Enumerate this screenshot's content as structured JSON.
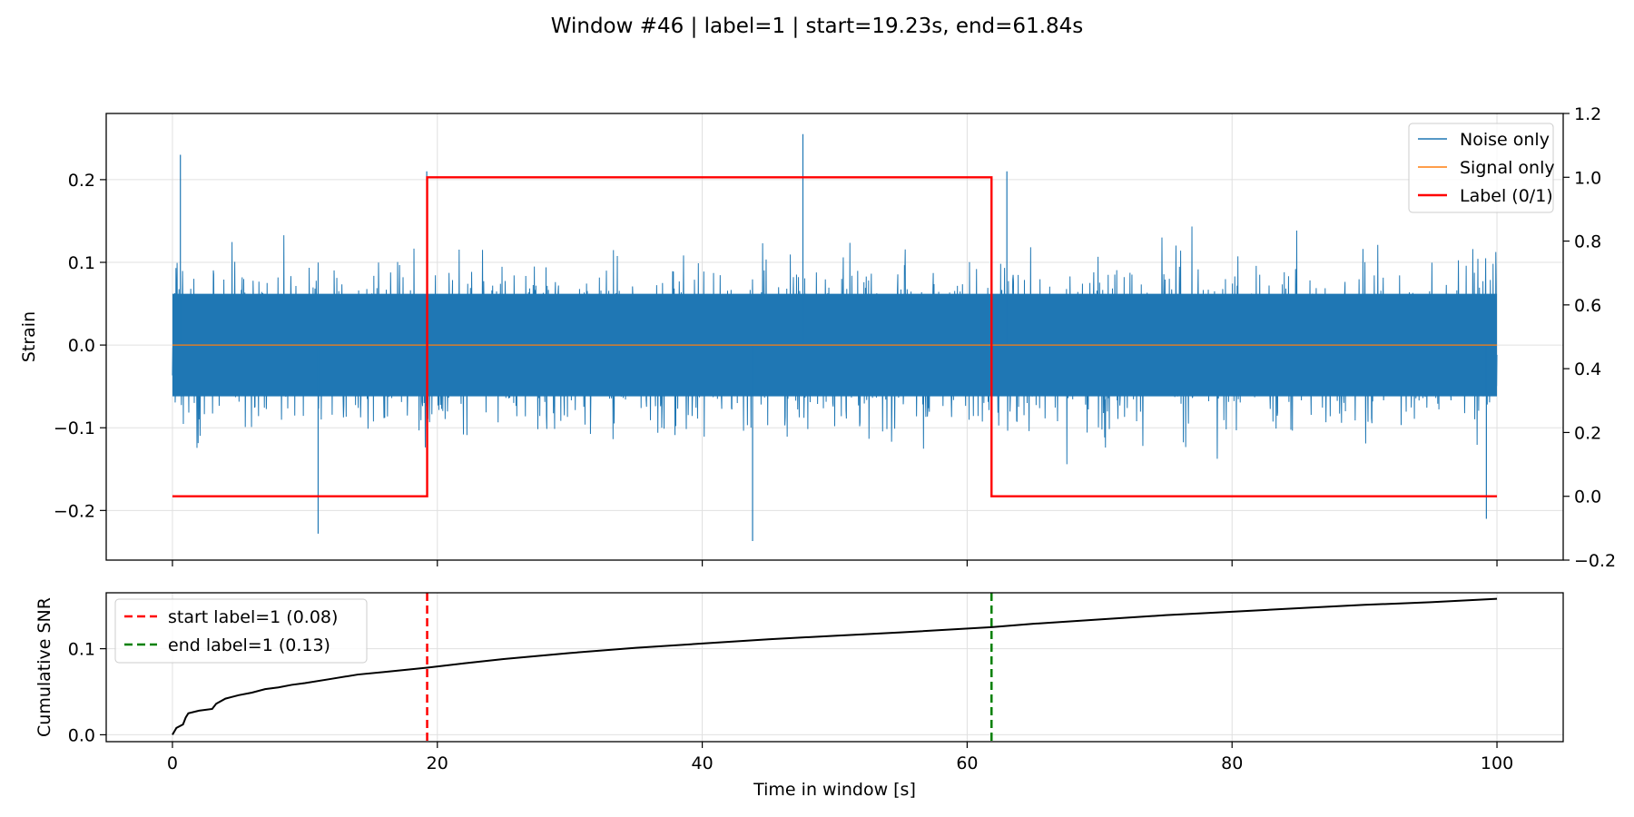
{
  "figure": {
    "title": "Window #46 | label=1 | start=19.23s, end=61.84s"
  },
  "colors": {
    "noise": "#1f77b4",
    "signal": "#ff7f0e",
    "label": "#ff0000",
    "snr": "#000000",
    "start_line": "#ff0000",
    "end_line": "#008000",
    "grid": "#e0e0e0"
  },
  "chart_data": [
    {
      "type": "line",
      "panel": "top",
      "xlabel": "",
      "ylabel": "Strain",
      "y2label": "",
      "xlim": [
        -5,
        105
      ],
      "ylim": [
        -0.26,
        0.28
      ],
      "y2lim": [
        -0.2,
        1.2
      ],
      "x_ticks": [
        0,
        20,
        40,
        60,
        80,
        100
      ],
      "y_ticks": [
        -0.2,
        -0.1,
        0.0,
        0.1,
        0.2
      ],
      "y_tick_labels": [
        "−0.2",
        "−0.1",
        "0.0",
        "0.1",
        "0.2"
      ],
      "y2_ticks": [
        -0.2,
        0.0,
        0.2,
        0.4,
        0.6,
        0.8,
        1.0,
        1.2
      ],
      "y2_tick_labels": [
        "−0.2",
        "0.0",
        "0.2",
        "0.4",
        "0.6",
        "0.8",
        "1.0",
        "1.2"
      ],
      "grid": true,
      "legend_position": "top-right",
      "series": [
        {
          "name": "Noise only",
          "style": "noise band",
          "x_range": [
            0,
            100
          ],
          "typical_amplitude": 0.1,
          "notable_peaks": [
            {
              "x": 0.6,
              "y": 0.23
            },
            {
              "x": 47.6,
              "y": 0.255
            },
            {
              "x": 43.8,
              "y": -0.237
            },
            {
              "x": 11.0,
              "y": -0.228
            },
            {
              "x": 19.2,
              "y": 0.21
            },
            {
              "x": 63.0,
              "y": 0.21
            },
            {
              "x": 99.2,
              "y": -0.21
            }
          ]
        },
        {
          "name": "Signal only",
          "x": [
            0,
            100
          ],
          "y": [
            0,
            0
          ]
        },
        {
          "name": "Label (0/1)",
          "axis": "right",
          "x": [
            0,
            19.23,
            19.23,
            61.84,
            61.84,
            100
          ],
          "y": [
            0,
            0,
            1,
            1,
            0,
            0
          ]
        }
      ]
    },
    {
      "type": "line",
      "panel": "bottom",
      "xlabel": "Time in window [s]",
      "ylabel": "Cumulative SNR",
      "xlim": [
        -5,
        105
      ],
      "ylim": [
        -0.008,
        0.165
      ],
      "x_ticks": [
        0,
        20,
        40,
        60,
        80,
        100
      ],
      "x_tick_labels": [
        "0",
        "20",
        "40",
        "60",
        "80",
        "100"
      ],
      "y_ticks": [
        0.0,
        0.1
      ],
      "y_tick_labels": [
        "0.0",
        "0.1"
      ],
      "grid": true,
      "legend_position": "top-left",
      "series": [
        {
          "name": "",
          "x": [
            0,
            0.3,
            0.8,
            1.0,
            1.2,
            2,
            3,
            3.3,
            4,
            5,
            6,
            7,
            8,
            9,
            10,
            12,
            14,
            16,
            19.23,
            22,
            25,
            30,
            35,
            40,
            45,
            50,
            55,
            61.84,
            65,
            70,
            75,
            80,
            85,
            90,
            95,
            100
          ],
          "y": [
            0.0,
            0.008,
            0.012,
            0.02,
            0.025,
            0.028,
            0.03,
            0.036,
            0.042,
            0.046,
            0.049,
            0.053,
            0.055,
            0.058,
            0.06,
            0.065,
            0.07,
            0.073,
            0.078,
            0.083,
            0.088,
            0.095,
            0.101,
            0.106,
            0.111,
            0.115,
            0.119,
            0.125,
            0.129,
            0.134,
            0.139,
            0.143,
            0.147,
            0.151,
            0.154,
            0.158
          ]
        }
      ],
      "vlines": [
        {
          "name": "start label=1 (0.08)",
          "x": 19.23,
          "style": "dashed"
        },
        {
          "name": "end label=1 (0.13)",
          "x": 61.84,
          "style": "dashed"
        }
      ]
    }
  ]
}
